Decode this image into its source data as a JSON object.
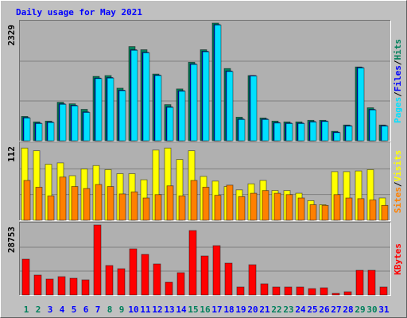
{
  "chart_data": [
    {
      "type": "bar",
      "title": "Daily usage for May 2021",
      "series": [
        {
          "name": "Hits",
          "color": "#00805c",
          "values": [
            481,
            373,
            388,
            761,
            730,
            621,
            1273,
            1289,
            1040,
            1863,
            1801,
            1320,
            714,
            1025,
            1553,
            1801,
            2329,
            1429,
            466,
            1289,
            450,
            388,
            373,
            373,
            404,
            404,
            186,
            311,
            1460,
            652,
            311
          ]
        },
        {
          "name": "Files",
          "color": "#0000ff",
          "values": [
            460,
            350,
            370,
            730,
            700,
            570,
            1240,
            1250,
            1000,
            1800,
            1750,
            1300,
            670,
            990,
            1520,
            1770,
            2300,
            1380,
            430,
            1290,
            430,
            360,
            350,
            350,
            380,
            390,
            170,
            300,
            1450,
            620,
            300
          ]
        },
        {
          "name": "Pages",
          "color": "#00e0ff",
          "values": [
            450,
            340,
            360,
            720,
            690,
            560,
            1230,
            1240,
            990,
            1790,
            1740,
            1290,
            660,
            980,
            1510,
            1760,
            2290,
            1370,
            420,
            1280,
            420,
            350,
            340,
            340,
            370,
            380,
            160,
            290,
            1440,
            610,
            290
          ]
        }
      ],
      "ylim": [
        0,
        2329
      ],
      "yticks": [
        2329
      ]
    },
    {
      "type": "bar",
      "series": [
        {
          "name": "Visits",
          "color": "#ffff00",
          "values": [
            107,
            103,
            83,
            85,
            66,
            76,
            81,
            75,
            69,
            69,
            60,
            104,
            107,
            90,
            103,
            65,
            58,
            50,
            45,
            54,
            59,
            44,
            44,
            40,
            29,
            23,
            72,
            72,
            73,
            75,
            33
          ]
        },
        {
          "name": "Sites",
          "color": "#ff8000",
          "values": [
            59,
            49,
            36,
            64,
            50,
            47,
            53,
            50,
            39,
            42,
            33,
            38,
            51,
            36,
            59,
            49,
            37,
            52,
            35,
            40,
            44,
            40,
            38,
            33,
            23,
            22,
            38,
            33,
            32,
            30,
            22
          ]
        }
      ],
      "ylim": [
        0,
        112
      ],
      "yticks": [
        112
      ]
    },
    {
      "type": "bar",
      "categories": [
        "1",
        "2",
        "3",
        "4",
        "5",
        "6",
        "7",
        "8",
        "9",
        "10",
        "11",
        "12",
        "13",
        "14",
        "15",
        "16",
        "17",
        "18",
        "19",
        "20",
        "21",
        "22",
        "23",
        "24",
        "25",
        "26",
        "27",
        "28",
        "29",
        "30",
        "31"
      ],
      "category_colors": [
        "#00805c",
        "#00805c",
        "#0000ff",
        "#0000ff",
        "#0000ff",
        "#0000ff",
        "#0000ff",
        "#00805c",
        "#00805c",
        "#0000ff",
        "#0000ff",
        "#0000ff",
        "#0000ff",
        "#0000ff",
        "#00805c",
        "#00805c",
        "#0000ff",
        "#0000ff",
        "#0000ff",
        "#0000ff",
        "#0000ff",
        "#00805c",
        "#00805c",
        "#0000ff",
        "#0000ff",
        "#0000ff",
        "#0000ff",
        "#0000ff",
        "#00805c",
        "#00805c",
        "#0000ff"
      ],
      "series": [
        {
          "name": "KBytes",
          "color": "#ff0000",
          "values": [
            14702,
            8168,
            6534,
            7514,
            6861,
            6207,
            28753,
            12088,
            10781,
            18949,
            16662,
            12741,
            5227,
            9148,
            26463,
            16008,
            20255,
            13068,
            3267,
            12415,
            4574,
            3267,
            3267,
            3267,
            2614,
            2940,
            653,
            1307,
            10128,
            10128,
            3267
          ]
        }
      ],
      "ylim": [
        0,
        28753
      ],
      "yticks": [
        28753
      ]
    }
  ]
}
